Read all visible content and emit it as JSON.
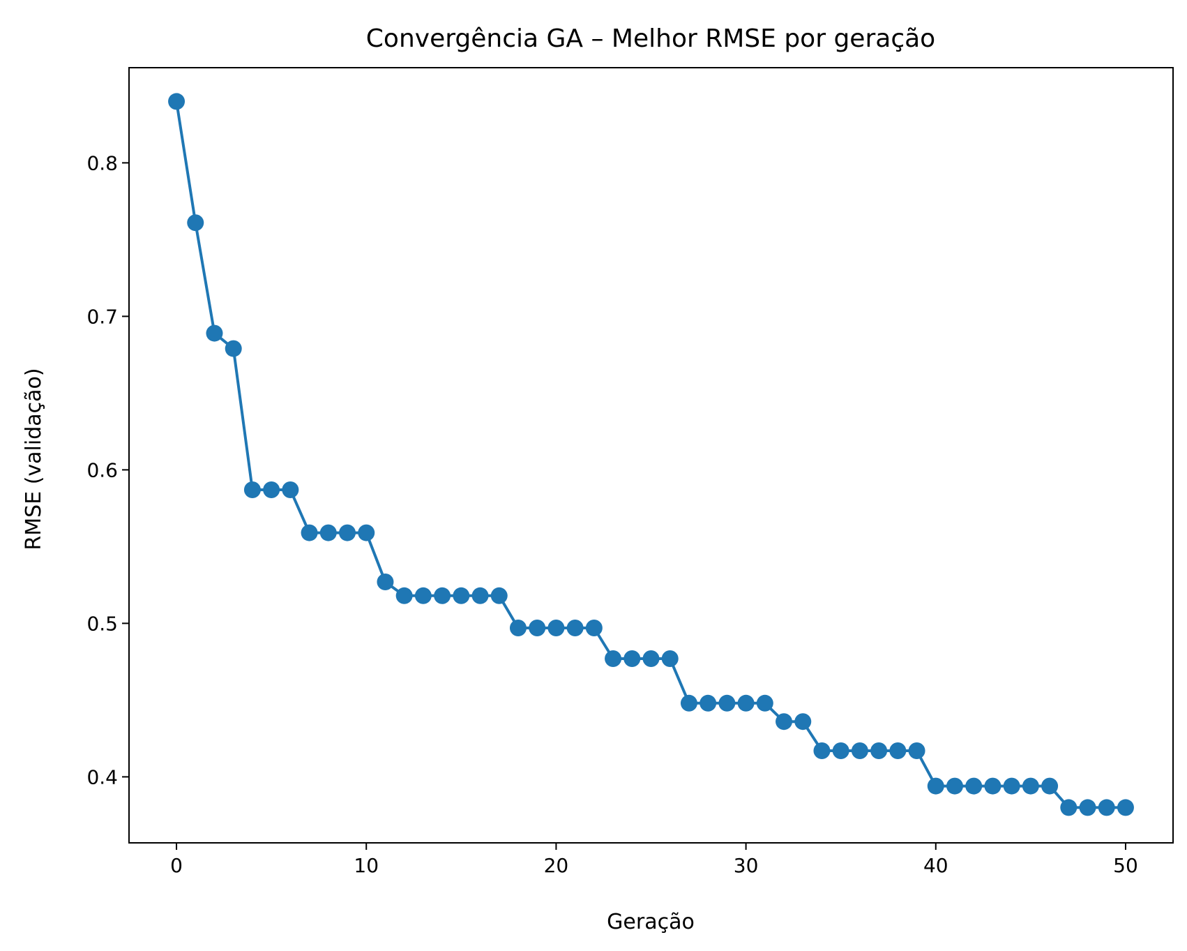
{
  "chart_data": {
    "type": "line",
    "title": "Convergência GA – Melhor RMSE por geração",
    "xlabel": "Geração",
    "ylabel": "RMSE (validação)",
    "xlim": [
      -2.5,
      52.5
    ],
    "ylim": [
      0.357,
      0.862
    ],
    "xticks": [
      0,
      10,
      20,
      30,
      40,
      50
    ],
    "xtick_labels": [
      "0",
      "10",
      "20",
      "30",
      "40",
      "50"
    ],
    "yticks": [
      0.4,
      0.5,
      0.6,
      0.7,
      0.8
    ],
    "ytick_labels": [
      "0.4",
      "0.5",
      "0.6",
      "0.7",
      "0.8"
    ],
    "grid": false,
    "series": [
      {
        "color": "#1f77b4",
        "marker": "circle",
        "x": [
          0,
          1,
          2,
          3,
          4,
          5,
          6,
          7,
          8,
          9,
          10,
          11,
          12,
          13,
          14,
          15,
          16,
          17,
          18,
          19,
          20,
          21,
          22,
          23,
          24,
          25,
          26,
          27,
          28,
          29,
          30,
          31,
          32,
          33,
          34,
          35,
          36,
          37,
          38,
          39,
          40,
          41,
          42,
          43,
          44,
          45,
          46,
          47,
          48,
          49,
          50
        ],
        "y": [
          0.84,
          0.761,
          0.689,
          0.679,
          0.587,
          0.587,
          0.587,
          0.559,
          0.559,
          0.559,
          0.559,
          0.527,
          0.518,
          0.518,
          0.518,
          0.518,
          0.518,
          0.518,
          0.497,
          0.497,
          0.497,
          0.497,
          0.497,
          0.477,
          0.477,
          0.477,
          0.477,
          0.448,
          0.448,
          0.448,
          0.448,
          0.448,
          0.436,
          0.436,
          0.417,
          0.417,
          0.417,
          0.417,
          0.417,
          0.417,
          0.394,
          0.394,
          0.394,
          0.394,
          0.394,
          0.394,
          0.394,
          0.38,
          0.38,
          0.38,
          0.38
        ]
      }
    ]
  }
}
